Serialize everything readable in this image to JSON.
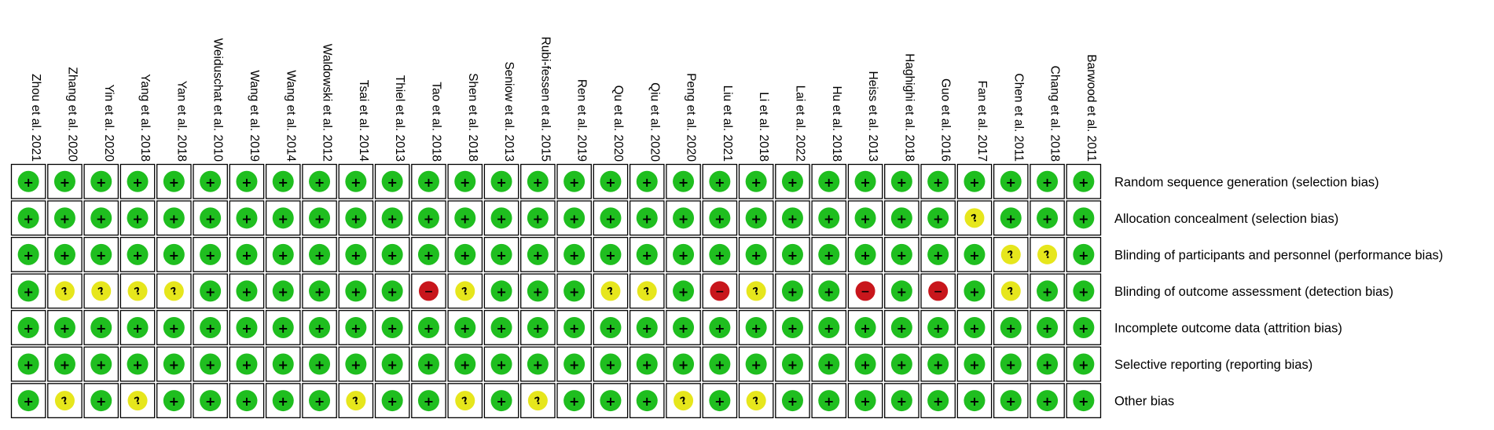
{
  "chart_data": {
    "type": "table",
    "studies": [
      "Zhou et al. 2021",
      "Zhang et al. 2020",
      "Yin et al. 2020",
      "Yang et al. 2018",
      "Yan et al. 2018",
      "Weiduschat et al. 2010",
      "Wang et al. 2019",
      "Wang et al. 2014",
      "Waldowski et al. 2012",
      "Tsai et al. 2014",
      "Thiel et al. 2013",
      "Tao et al. 2018",
      "Shen et al. 2018",
      "Seniow et al. 2013",
      "Rubi-fessen et al. 2015",
      "Ren et al. 2019",
      "Qu et al. 2020",
      "Qiu et al. 2020",
      "Peng et al. 2020",
      "Liu et al. 2021",
      "Li et al. 2018",
      "Lai et al. 2022",
      "Hu et al. 2018",
      "Heiss et al. 2013",
      "Haghighi et al. 2018",
      "Guo  et al. 2016",
      "Fan et al. 2017",
      "Chen et al. 2011",
      "Chang  et al. 2018",
      "Barwood et al. 2011"
    ],
    "domains": [
      "Random sequence generation (selection bias)",
      "Allocation concealment (selection bias)",
      "Blinding of participants and personnel (performance bias)",
      "Blinding of outcome assessment (detection bias)",
      "Incomplete outcome data (attrition bias)",
      "Selective reporting (reporting bias)",
      "Other bias"
    ],
    "judgements": [
      "++++++++++++++++++++++++++++++",
      "++++++++++++++++++++++++++?+++",
      "+++++++++++++++++++++++++++??+",
      "+????++++++-?+++??+-?++-+-+?++",
      "++++++++++++++++++++++++++++++",
      "++++++++++++++++++++++++++++++",
      "+?+?+++++?++?+?+++?+?+++++++++"
    ],
    "legend": {
      "+": {
        "meaning": "low risk",
        "symbol": "+",
        "color": "#1fbe1f"
      },
      "?": {
        "meaning": "unclear risk",
        "symbol": "?",
        "color": "#e6e61c"
      },
      "-": {
        "meaning": "high risk",
        "symbol": "−",
        "color": "#c8161c"
      }
    }
  }
}
